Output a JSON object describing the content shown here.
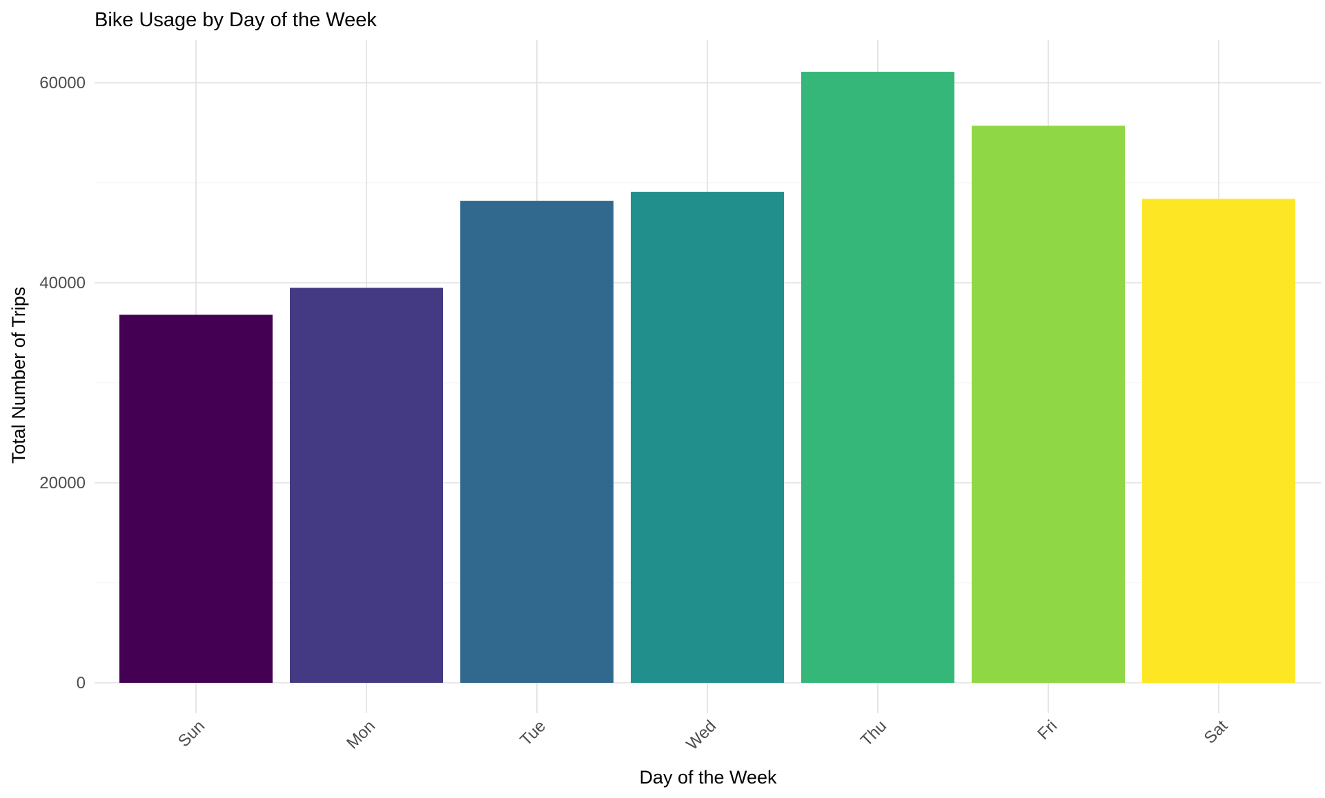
{
  "chart_data": {
    "type": "bar",
    "title": "Bike Usage by Day of the Week",
    "xlabel": "Day of the Week",
    "ylabel": "Total Number of Trips",
    "categories": [
      "Sun",
      "Mon",
      "Tue",
      "Wed",
      "Thu",
      "Fri",
      "Sat"
    ],
    "values": [
      36800,
      39500,
      48200,
      49100,
      61100,
      55700,
      48400
    ],
    "colors": [
      "#440154",
      "#443A83",
      "#31688E",
      "#21908C",
      "#35B779",
      "#8FD744",
      "#FDE725"
    ],
    "ylim": [
      0,
      64000
    ],
    "yticks": [
      0,
      20000,
      40000,
      60000
    ],
    "ytick_labels": [
      "0",
      "20000",
      "40000",
      "60000"
    ],
    "grid": true,
    "legend": "none",
    "x_tick_rotation": "45 degrees"
  }
}
